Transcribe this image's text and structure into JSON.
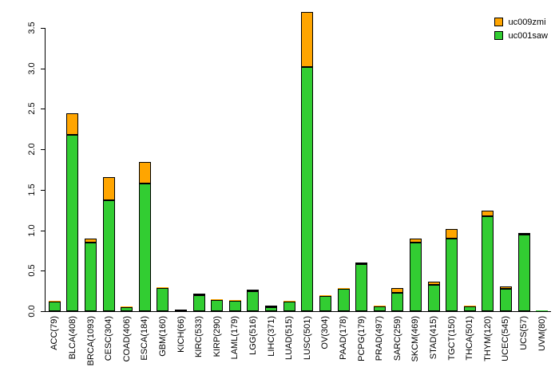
{
  "figure": {
    "background": "#ffffff"
  },
  "chart_data": {
    "type": "bar",
    "stacked": true,
    "title": "",
    "xlabel": "",
    "ylabel": "",
    "grid": false,
    "ylim": [
      0,
      3.5
    ],
    "yticks": [
      "0.0",
      "0.5",
      "1.0",
      "1.5",
      "2.0",
      "2.5",
      "3.0",
      "3.5"
    ],
    "bar_border_color": "#000000",
    "categories": [
      "ACC(79)",
      "BLCA(408)",
      "BRCA(1093)",
      "CESC(304)",
      "COAD(406)",
      "ESCA(184)",
      "GBM(160)",
      "KICH(66)",
      "KIRC(533)",
      "KIRP(290)",
      "LAML(179)",
      "LGG(516)",
      "LIHC(371)",
      "LUAD(515)",
      "LUSC(501)",
      "OV(304)",
      "PAAD(178)",
      "PCPG(179)",
      "PRAD(497)",
      "SARC(259)",
      "SKCM(469)",
      "STAD(415)",
      "TGCT(150)",
      "THCA(501)",
      "THYM(120)",
      "UCEC(545)",
      "UCS(57)",
      "UVM(80)"
    ],
    "series": [
      {
        "name": "uc001saw",
        "color": "#32CD32",
        "values": [
          0.12,
          2.18,
          0.85,
          1.37,
          0.05,
          1.58,
          0.29,
          0.02,
          0.2,
          0.14,
          0.13,
          0.25,
          0.05,
          0.12,
          3.02,
          0.19,
          0.28,
          0.58,
          0.06,
          0.23,
          0.85,
          0.33,
          0.9,
          0.06,
          1.17,
          0.28,
          0.95,
          0.01
        ]
      },
      {
        "name": "uc009zmi",
        "color": "#FFA500",
        "values": [
          0.01,
          0.27,
          0.05,
          0.29,
          0.01,
          0.26,
          0.01,
          0.0,
          0.02,
          0.01,
          0.01,
          0.02,
          0.02,
          0.01,
          0.68,
          0.01,
          0.01,
          0.02,
          0.01,
          0.06,
          0.05,
          0.03,
          0.12,
          0.01,
          0.07,
          0.03,
          0.02,
          0.0
        ]
      }
    ],
    "legend": {
      "position": "top-right",
      "entries": [
        {
          "label": "uc009zmi",
          "color": "#FFA500"
        },
        {
          "label": "uc001saw",
          "color": "#32CD32"
        }
      ]
    }
  }
}
